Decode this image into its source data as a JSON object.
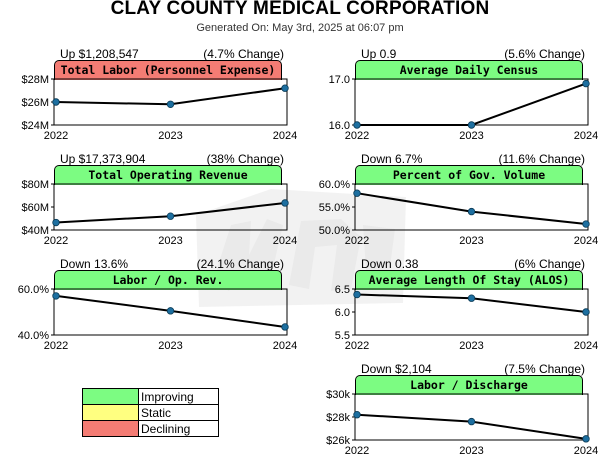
{
  "title": "CLAY COUNTY MEDICAL CORPORATION",
  "subtitle": "Generated On: May 3rd, 2025 at 06:07 pm",
  "colors": {
    "improving": "#7cfc82",
    "static": "#ffff80",
    "declining": "#f47c74",
    "line": "#000000",
    "marker": "#1d6fa0",
    "watermark": "#c8c8c8"
  },
  "legend": [
    {
      "label": "Improving",
      "status": "improving"
    },
    {
      "label": "Static",
      "status": "static"
    },
    {
      "label": "Declining",
      "status": "declining"
    }
  ],
  "chart_data": [
    {
      "type": "line",
      "title": "Total Labor (Personnel Expense)",
      "status": "declining",
      "change_text": "Up $1,208,547",
      "pct_text": "(4.7% Change)",
      "x": [
        "2022",
        "2023",
        "2024"
      ],
      "series": [
        {
          "values": [
            26.0,
            25.8,
            27.2
          ]
        }
      ],
      "ylim": [
        24,
        28
      ],
      "yticks": [
        {
          "v": 28,
          "label": "$28M"
        },
        {
          "v": 26,
          "label": "$26M"
        },
        {
          "v": 24,
          "label": "$24M"
        }
      ]
    },
    {
      "type": "line",
      "title": "Average Daily Census",
      "status": "improving",
      "change_text": "Up 0.9",
      "pct_text": "(5.6% Change)",
      "x": [
        "2022",
        "2023",
        "2024"
      ],
      "series": [
        {
          "values": [
            16.0,
            16.0,
            16.9
          ]
        }
      ],
      "ylim": [
        16,
        17
      ],
      "yticks": [
        {
          "v": 17,
          "label": "17.0"
        },
        {
          "v": 16,
          "label": "16.0"
        }
      ]
    },
    {
      "type": "line",
      "title": "Total Operating Revenue",
      "status": "improving",
      "change_text": "Up $17,373,904",
      "pct_text": "(38% Change)",
      "x": [
        "2022",
        "2023",
        "2024"
      ],
      "series": [
        {
          "values": [
            46.5,
            52.0,
            63.5
          ]
        }
      ],
      "ylim": [
        40,
        80
      ],
      "yticks": [
        {
          "v": 80,
          "label": "$80M"
        },
        {
          "v": 60,
          "label": "$60M"
        },
        {
          "v": 40,
          "label": "$40M"
        }
      ]
    },
    {
      "type": "line",
      "title": "Percent of Gov. Volume",
      "status": "improving",
      "change_text": "Down 6.7%",
      "pct_text": "(11.6% Change)",
      "x": [
        "2022",
        "2023",
        "2024"
      ],
      "series": [
        {
          "values": [
            58.0,
            54.0,
            51.3
          ]
        }
      ],
      "ylim": [
        50,
        60
      ],
      "yticks": [
        {
          "v": 60,
          "label": "60.0%"
        },
        {
          "v": 55,
          "label": "55.0%"
        },
        {
          "v": 50,
          "label": "50.0%"
        }
      ]
    },
    {
      "type": "line",
      "title": "Labor / Op. Rev.",
      "status": "improving",
      "change_text": "Down 13.6%",
      "pct_text": "(24.1% Change)",
      "x": [
        "2022",
        "2023",
        "2024"
      ],
      "series": [
        {
          "values": [
            57.0,
            50.5,
            43.5
          ]
        }
      ],
      "ylim": [
        40,
        60
      ],
      "yticks": [
        {
          "v": 60,
          "label": "60.0%"
        },
        {
          "v": 40,
          "label": "40.0%"
        }
      ]
    },
    {
      "type": "line",
      "title": "Average Length Of Stay (ALOS)",
      "status": "improving",
      "change_text": "Down 0.38",
      "pct_text": "(6% Change)",
      "x": [
        "2022",
        "2023",
        "2024"
      ],
      "series": [
        {
          "values": [
            6.38,
            6.3,
            6.0
          ]
        }
      ],
      "ylim": [
        5.5,
        6.5
      ],
      "yticks": [
        {
          "v": 6.5,
          "label": "6.5"
        },
        {
          "v": 6.0,
          "label": "6.0"
        },
        {
          "v": 5.5,
          "label": "5.5"
        }
      ]
    },
    {
      "type": "line",
      "title": "Labor / Discharge",
      "status": "improving",
      "change_text": "Down $2,104",
      "pct_text": "(7.5% Change)",
      "x": [
        "2022",
        "2023",
        "2024"
      ],
      "series": [
        {
          "values": [
            28.2,
            27.6,
            26.1
          ]
        }
      ],
      "ylim": [
        26,
        30
      ],
      "yticks": [
        {
          "v": 30,
          "label": "$30k"
        },
        {
          "v": 28,
          "label": "$28k"
        },
        {
          "v": 26,
          "label": "$26k"
        }
      ]
    }
  ]
}
